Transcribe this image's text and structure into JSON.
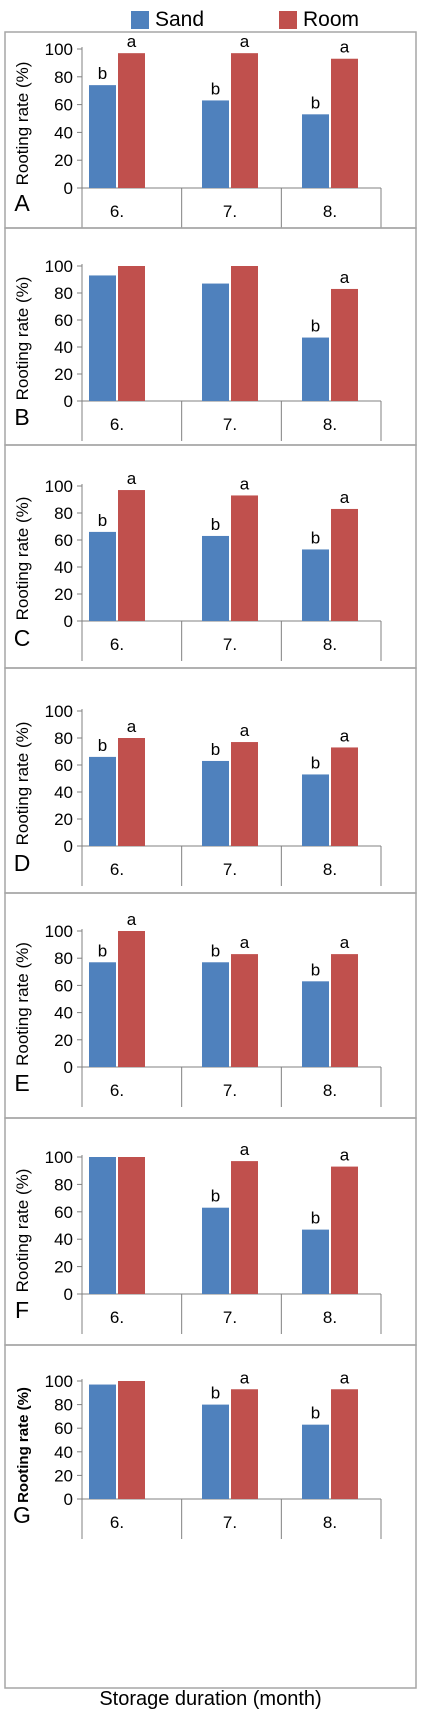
{
  "legend": {
    "sand_label": "Sand",
    "room_label": "Room",
    "sand_color": "#4f81bd",
    "room_color": "#c0504d"
  },
  "x_axis_title": "Storage duration (month)",
  "chart_data": [
    {
      "type": "bar",
      "panel_label": "A",
      "categories": [
        "6.",
        "7.",
        "8."
      ],
      "ylabel": "Rooting rate (%)",
      "ylim": [
        0,
        100
      ],
      "yticks": [
        0,
        20,
        40,
        60,
        80,
        100
      ],
      "series": [
        {
          "name": "Sand",
          "values": [
            74,
            63,
            53
          ]
        },
        {
          "name": "Room",
          "values": [
            97,
            97,
            93
          ]
        }
      ],
      "annotations": {
        "Sand": [
          "b",
          "b",
          "b"
        ],
        "Room": [
          "a",
          "a",
          "a"
        ]
      }
    },
    {
      "type": "bar",
      "panel_label": "B",
      "categories": [
        "6.",
        "7.",
        "8."
      ],
      "ylabel": "Rooting rate (%)",
      "ylim": [
        0,
        100
      ],
      "yticks": [
        0,
        20,
        40,
        60,
        80,
        100
      ],
      "series": [
        {
          "name": "Sand",
          "values": [
            93,
            87,
            47
          ]
        },
        {
          "name": "Room",
          "values": [
            100,
            100,
            83
          ]
        }
      ],
      "annotations": {
        "Sand": [
          "",
          "",
          "b"
        ],
        "Room": [
          "",
          "",
          "a"
        ]
      }
    },
    {
      "type": "bar",
      "panel_label": "C",
      "categories": [
        "6.",
        "7.",
        "8."
      ],
      "ylabel": "Rooting rate (%)",
      "ylim": [
        0,
        100
      ],
      "yticks": [
        0,
        20,
        40,
        60,
        80,
        100
      ],
      "series": [
        {
          "name": "Sand",
          "values": [
            66,
            63,
            53
          ]
        },
        {
          "name": "Room",
          "values": [
            97,
            93,
            83
          ]
        }
      ],
      "annotations": {
        "Sand": [
          "b",
          "b",
          "b"
        ],
        "Room": [
          "a",
          "a",
          "a"
        ]
      }
    },
    {
      "type": "bar",
      "panel_label": "D",
      "categories": [
        "6.",
        "7.",
        "8."
      ],
      "ylabel": "Rooting rate (%)",
      "ylim": [
        0,
        100
      ],
      "yticks": [
        0,
        20,
        40,
        60,
        80,
        100
      ],
      "series": [
        {
          "name": "Sand",
          "values": [
            66,
            63,
            53
          ]
        },
        {
          "name": "Room",
          "values": [
            80,
            77,
            73
          ]
        }
      ],
      "annotations": {
        "Sand": [
          "b",
          "b",
          "b"
        ],
        "Room": [
          "a",
          "a",
          "a"
        ]
      }
    },
    {
      "type": "bar",
      "panel_label": "E",
      "categories": [
        "6.",
        "7.",
        "8."
      ],
      "ylabel": "Rooting rate (%)",
      "ylim": [
        0,
        100
      ],
      "yticks": [
        0,
        20,
        40,
        60,
        80,
        100
      ],
      "series": [
        {
          "name": "Sand",
          "values": [
            77,
            77,
            63
          ]
        },
        {
          "name": "Room",
          "values": [
            100,
            83,
            83
          ]
        }
      ],
      "annotations": {
        "Sand": [
          "b",
          "b",
          "b"
        ],
        "Room": [
          "a",
          "a",
          "a"
        ]
      }
    },
    {
      "type": "bar",
      "panel_label": "F",
      "categories": [
        "6.",
        "7.",
        "8."
      ],
      "ylabel": "Rooting rate (%)",
      "ylim": [
        0,
        100
      ],
      "yticks": [
        0,
        20,
        40,
        60,
        80,
        100
      ],
      "series": [
        {
          "name": "Sand",
          "values": [
            100,
            63,
            47
          ]
        },
        {
          "name": "Room",
          "values": [
            100,
            97,
            93
          ]
        }
      ],
      "annotations": {
        "Sand": [
          "",
          "b",
          "b"
        ],
        "Room": [
          "",
          "a",
          "a"
        ]
      }
    },
    {
      "type": "bar",
      "panel_label": "G",
      "categories": [
        "6.",
        "7.",
        "8."
      ],
      "ylabel": "Rooting rate (%)",
      "ylim": [
        0,
        100
      ],
      "yticks": [
        0,
        20,
        40,
        60,
        80,
        100
      ],
      "series": [
        {
          "name": "Sand",
          "values": [
            97,
            80,
            63
          ]
        },
        {
          "name": "Room",
          "values": [
            100,
            93,
            93
          ]
        }
      ],
      "annotations": {
        "Sand": [
          "",
          "b",
          "b"
        ],
        "Room": [
          "",
          "a",
          "a"
        ]
      }
    }
  ]
}
